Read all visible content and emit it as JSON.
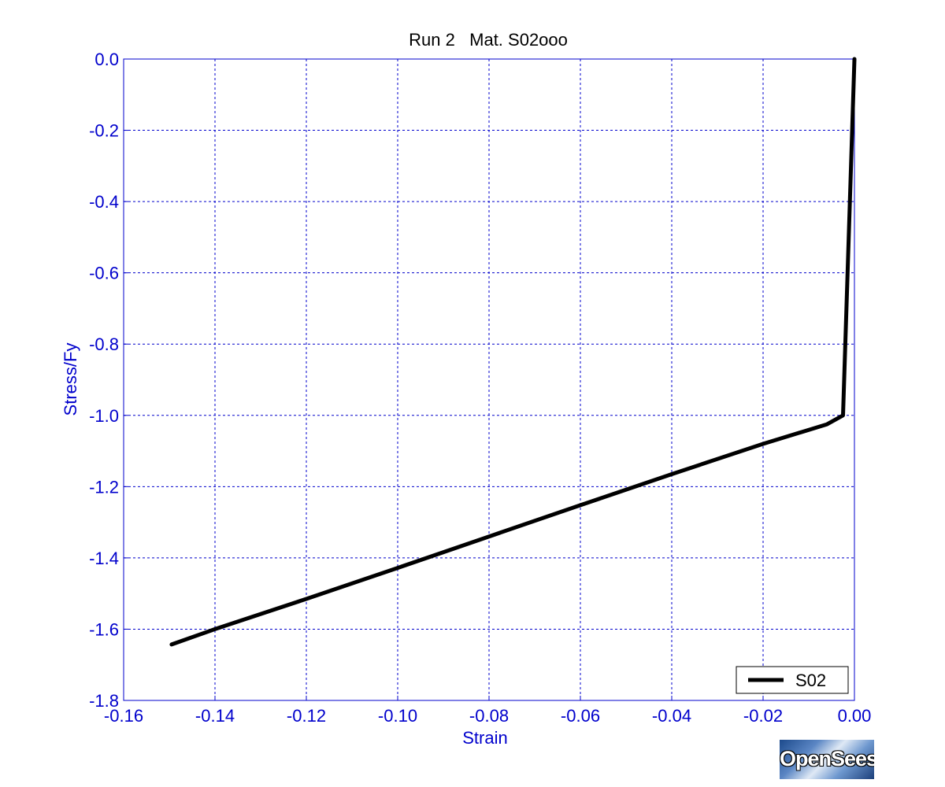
{
  "chart_data": {
    "type": "line",
    "title": "Run 2   Mat. S02ooo",
    "xlabel": "Strain",
    "ylabel": "Stress/Fy",
    "xlim": [
      -0.16,
      0.0
    ],
    "ylim": [
      -1.8,
      0.0
    ],
    "xticks": [
      -0.16,
      -0.14,
      -0.12,
      -0.1,
      -0.08,
      -0.06,
      -0.04,
      -0.02,
      0.0
    ],
    "xtick_labels": [
      "-0.16",
      "-0.14",
      "-0.12",
      "-0.10",
      "-0.08",
      "-0.06",
      "-0.04",
      "-0.02",
      "0.00"
    ],
    "yticks": [
      0.0,
      -0.2,
      -0.4,
      -0.6,
      -0.8,
      -1.0,
      -1.2,
      -1.4,
      -1.6,
      -1.8
    ],
    "ytick_labels": [
      "0.0",
      "-0.2",
      "-0.4",
      "-0.6",
      "-0.8",
      "-1.0",
      "-1.2",
      "-1.4",
      "-1.6",
      "-1.8"
    ],
    "grid": true,
    "legend_position": "bottom-right",
    "series": [
      {
        "name": "S02",
        "color": "#000000",
        "points": [
          {
            "x": 0.0,
            "y": 0.0
          },
          {
            "x": -0.0005,
            "y": -0.2
          },
          {
            "x": -0.0025,
            "y": -1.0
          },
          {
            "x": -0.006,
            "y": -1.025
          },
          {
            "x": -0.02,
            "y": -1.08
          },
          {
            "x": -0.04,
            "y": -1.165
          },
          {
            "x": -0.06,
            "y": -1.252
          },
          {
            "x": -0.08,
            "y": -1.34
          },
          {
            "x": -0.1,
            "y": -1.428
          },
          {
            "x": -0.12,
            "y": -1.515
          },
          {
            "x": -0.14,
            "y": -1.6
          },
          {
            "x": -0.1495,
            "y": -1.643
          }
        ]
      }
    ]
  },
  "colors": {
    "axis_text": "#0000cc",
    "grid": "#0000cc",
    "line": "#000000"
  },
  "logo": {
    "text": "OpenSees"
  }
}
